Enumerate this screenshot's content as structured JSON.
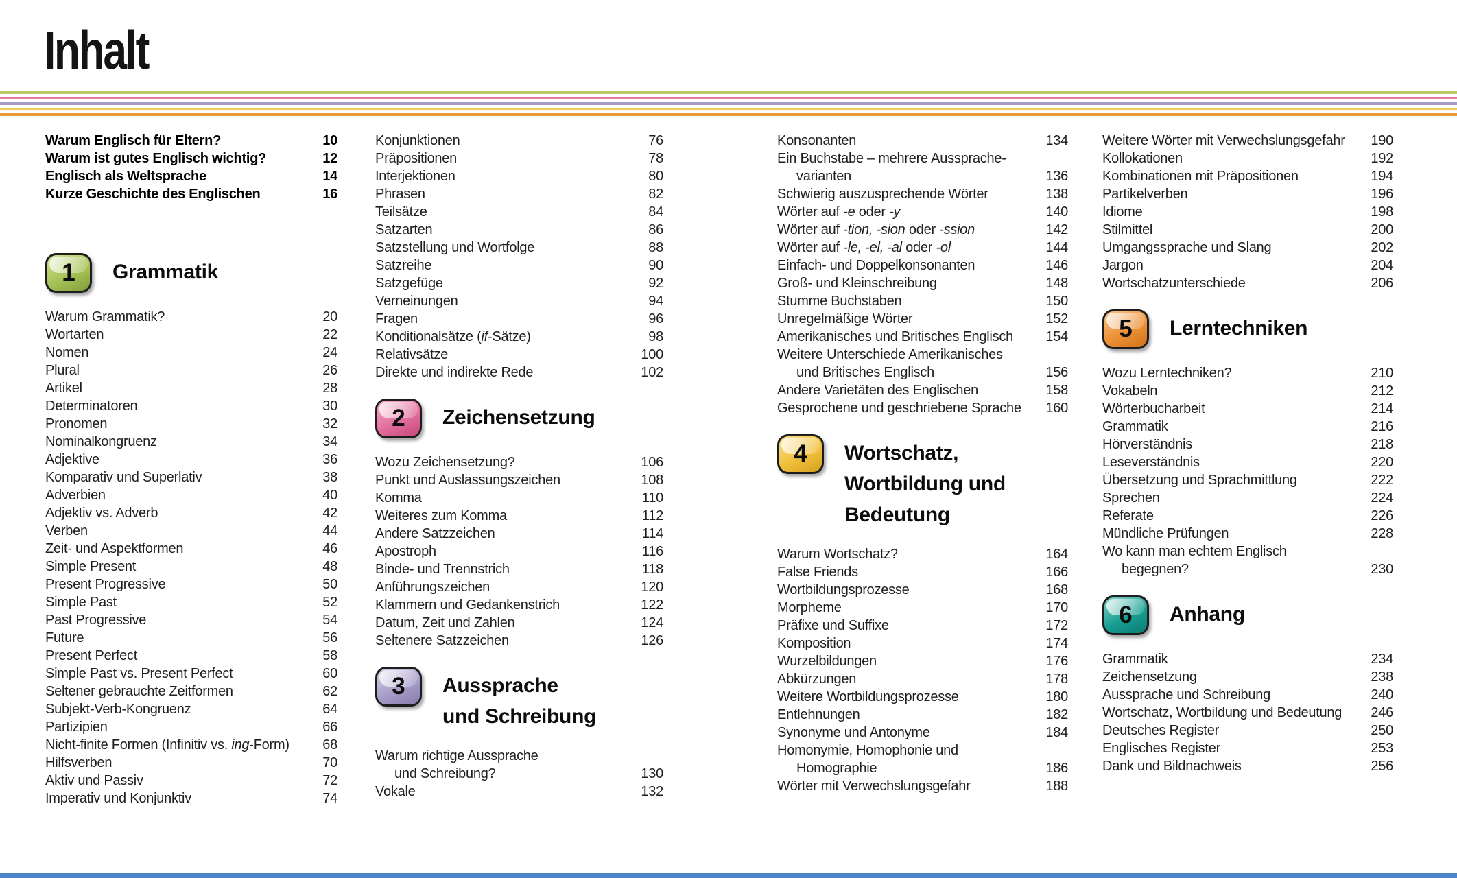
{
  "page_title": "Inhalt",
  "decor": {
    "stripe_colors": [
      "#bcca6b",
      "#e27b9e",
      "#a59bc6",
      "#f1ca57",
      "#e9993f"
    ],
    "bottom_bar_color": "#4a86c5"
  },
  "columns": [
    {
      "blocks": [
        {
          "type": "entries",
          "bold": true,
          "items": [
            {
              "lines": [
                "Warum Englisch für Eltern?"
              ],
              "page": "10"
            },
            {
              "lines": [
                "Warum ist gutes Englisch wichtig?"
              ],
              "page": "12"
            },
            {
              "lines": [
                "Englisch als Weltsprache"
              ],
              "page": "14"
            },
            {
              "lines": [
                "Kurze Geschichte des Englischen"
              ],
              "page": "16"
            }
          ]
        },
        {
          "type": "section",
          "number": "1",
          "title_lines": [
            "Grammatik"
          ],
          "colors": {
            "light": "#d3e298",
            "base": "#a6c257",
            "dark": "#81a03a"
          }
        },
        {
          "type": "entries",
          "items": [
            {
              "lines": [
                "Warum Grammatik?"
              ],
              "page": "20"
            },
            {
              "lines": [
                "Wortarten"
              ],
              "page": "22"
            },
            {
              "lines": [
                "Nomen"
              ],
              "page": "24"
            },
            {
              "lines": [
                "Plural"
              ],
              "page": "26"
            },
            {
              "lines": [
                "Artikel"
              ],
              "page": "28"
            },
            {
              "lines": [
                "Determinatoren"
              ],
              "page": "30"
            },
            {
              "lines": [
                "Pronomen"
              ],
              "page": "32"
            },
            {
              "lines": [
                "Nominalkongruenz"
              ],
              "page": "34"
            },
            {
              "lines": [
                "Adjektive"
              ],
              "page": "36"
            },
            {
              "lines": [
                "Komparativ und Superlativ"
              ],
              "page": "38"
            },
            {
              "lines": [
                "Adverbien"
              ],
              "page": "40"
            },
            {
              "lines": [
                "Adjektiv vs. Adverb"
              ],
              "page": "42"
            },
            {
              "lines": [
                "Verben"
              ],
              "page": "44"
            },
            {
              "lines": [
                "Zeit- und Aspektformen"
              ],
              "page": "46"
            },
            {
              "lines": [
                "Simple Present"
              ],
              "page": "48"
            },
            {
              "lines": [
                "Present Progressive"
              ],
              "page": "50"
            },
            {
              "lines": [
                "Simple Past"
              ],
              "page": "52"
            },
            {
              "lines": [
                "Past Progressive"
              ],
              "page": "54"
            },
            {
              "lines": [
                "Future"
              ],
              "page": "56"
            },
            {
              "lines": [
                "Present Perfect"
              ],
              "page": "58"
            },
            {
              "lines": [
                "Simple Past vs. Present Perfect"
              ],
              "page": "60"
            },
            {
              "lines": [
                "Seltener gebrauchte Zeitformen"
              ],
              "page": "62"
            },
            {
              "lines": [
                "Subjekt-Verb-Kongruenz"
              ],
              "page": "64"
            },
            {
              "lines": [
                "Partizipien"
              ],
              "page": "66"
            },
            {
              "lines": [
                "Nicht-finite Formen (Infinitiv vs. <i>ing</i>-Form)"
              ],
              "page": "68"
            },
            {
              "lines": [
                "Hilfsverben"
              ],
              "page": "70"
            },
            {
              "lines": [
                "Aktiv und Passiv"
              ],
              "page": "72"
            },
            {
              "lines": [
                "Imperativ und Konjunktiv"
              ],
              "page": "74"
            }
          ]
        }
      ]
    },
    {
      "blocks": [
        {
          "type": "entries",
          "items": [
            {
              "lines": [
                "Konjunktionen"
              ],
              "page": "76"
            },
            {
              "lines": [
                "Präpositionen"
              ],
              "page": "78"
            },
            {
              "lines": [
                "Interjektionen"
              ],
              "page": "80"
            },
            {
              "lines": [
                "Phrasen"
              ],
              "page": "82"
            },
            {
              "lines": [
                "Teilsätze"
              ],
              "page": "84"
            },
            {
              "lines": [
                "Satzarten"
              ],
              "page": "86"
            },
            {
              "lines": [
                "Satzstellung und Wortfolge"
              ],
              "page": "88"
            },
            {
              "lines": [
                "Satzreihe"
              ],
              "page": "90"
            },
            {
              "lines": [
                "Satzgefüge"
              ],
              "page": "92"
            },
            {
              "lines": [
                "Verneinungen"
              ],
              "page": "94"
            },
            {
              "lines": [
                "Fragen"
              ],
              "page": "96"
            },
            {
              "lines": [
                "Konditionalsätze (<i>if</i>-Sätze)"
              ],
              "page": "98"
            },
            {
              "lines": [
                "Relativsätze"
              ],
              "page": "100"
            },
            {
              "lines": [
                "Direkte und indirekte Rede"
              ],
              "page": "102"
            }
          ]
        },
        {
          "type": "section",
          "number": "2",
          "title_lines": [
            "Zeichensetzung"
          ],
          "colors": {
            "light": "#f5aec8",
            "base": "#e26f9d",
            "dark": "#c4487a"
          }
        },
        {
          "type": "entries",
          "items": [
            {
              "lines": [
                "Wozu Zeichensetzung?"
              ],
              "page": "106"
            },
            {
              "lines": [
                "Punkt und Auslassungszeichen"
              ],
              "page": "108"
            },
            {
              "lines": [
                "Komma"
              ],
              "page": "110"
            },
            {
              "lines": [
                "Weiteres zum Komma"
              ],
              "page": "112"
            },
            {
              "lines": [
                "Andere Satzzeichen"
              ],
              "page": "114"
            },
            {
              "lines": [
                "Apostroph"
              ],
              "page": "116"
            },
            {
              "lines": [
                "Binde- und Trennstrich"
              ],
              "page": "118"
            },
            {
              "lines": [
                "Anführungszeichen"
              ],
              "page": "120"
            },
            {
              "lines": [
                "Klammern und Gedankenstrich"
              ],
              "page": "122"
            },
            {
              "lines": [
                "Datum, Zeit und Zahlen"
              ],
              "page": "124"
            },
            {
              "lines": [
                "Seltenere Satzzeichen"
              ],
              "page": "126"
            }
          ]
        },
        {
          "type": "section",
          "number": "3",
          "title_lines": [
            "Aussprache",
            "und Schreibung"
          ],
          "colors": {
            "light": "#d4cde5",
            "base": "#a79dc8",
            "dark": "#867cab"
          }
        },
        {
          "type": "entries",
          "items": [
            {
              "lines": [
                "Warum richtige Aussprache",
                "und Schreibung?"
              ],
              "page": "130"
            },
            {
              "lines": [
                "Vokale"
              ],
              "page": "132"
            }
          ]
        }
      ]
    },
    {
      "blocks": [
        {
          "type": "entries",
          "items": [
            {
              "lines": [
                "Konsonanten"
              ],
              "page": "134"
            },
            {
              "lines": [
                "Ein Buchstabe – mehrere Aussprache-",
                "varianten"
              ],
              "page": "136"
            },
            {
              "lines": [
                "Schwierig auszusprechende Wörter"
              ],
              "page": "138"
            },
            {
              "lines": [
                "Wörter auf <i>-e</i> oder <i>-y</i>"
              ],
              "page": "140"
            },
            {
              "lines": [
                "Wörter auf <i>-tion, -sion</i> oder <i>-ssion</i>"
              ],
              "page": "142"
            },
            {
              "lines": [
                "Wörter auf <i>-le, -el, -al</i> oder <i>-ol</i>"
              ],
              "page": "144"
            },
            {
              "lines": [
                "Einfach- und Doppelkonsonanten"
              ],
              "page": "146"
            },
            {
              "lines": [
                "Groß- und Kleinschreibung"
              ],
              "page": "148"
            },
            {
              "lines": [
                "Stumme Buchstaben"
              ],
              "page": "150"
            },
            {
              "lines": [
                "Unregelmäßige Wörter"
              ],
              "page": "152"
            },
            {
              "lines": [
                "Amerikanisches und Britisches Englisch"
              ],
              "page": "154"
            },
            {
              "lines": [
                "Weitere Unterschiede Amerikanisches",
                "und Britisches Englisch"
              ],
              "page": "156"
            },
            {
              "lines": [
                "Andere Varietäten des Englischen"
              ],
              "page": "158"
            },
            {
              "lines": [
                "Gesprochene und geschriebene Sprache"
              ],
              "page": "160"
            }
          ]
        },
        {
          "type": "section",
          "number": "4",
          "title_lines": [
            "Wortschatz,",
            "Wortbildung und",
            "Bedeutung"
          ],
          "colors": {
            "light": "#f9e08e",
            "base": "#f1c13d",
            "dark": "#d69f1f"
          }
        },
        {
          "type": "entries",
          "items": [
            {
              "lines": [
                "Warum Wortschatz?"
              ],
              "page": "164"
            },
            {
              "lines": [
                "False Friends"
              ],
              "page": "166"
            },
            {
              "lines": [
                "Wortbildungsprozesse"
              ],
              "page": "168"
            },
            {
              "lines": [
                "Morpheme"
              ],
              "page": "170"
            },
            {
              "lines": [
                "Präfixe und Suffixe"
              ],
              "page": "172"
            },
            {
              "lines": [
                "Komposition"
              ],
              "page": "174"
            },
            {
              "lines": [
                "Wurzelbildungen"
              ],
              "page": "176"
            },
            {
              "lines": [
                "Abkürzungen"
              ],
              "page": "178"
            },
            {
              "lines": [
                "Weitere Wortbildungsprozesse"
              ],
              "page": "180"
            },
            {
              "lines": [
                "Entlehnungen"
              ],
              "page": "182"
            },
            {
              "lines": [
                "Synonyme und Antonyme"
              ],
              "page": "184"
            },
            {
              "lines": [
                "Homonymie, Homophonie und",
                "Homographie"
              ],
              "page": "186"
            },
            {
              "lines": [
                "Wörter mit Verwechslungsgefahr"
              ],
              "page": "188"
            }
          ]
        }
      ]
    },
    {
      "blocks": [
        {
          "type": "entries",
          "items": [
            {
              "lines": [
                "Weitere Wörter mit Verwechslungsgefahr"
              ],
              "page": "190"
            },
            {
              "lines": [
                "Kollokationen"
              ],
              "page": "192"
            },
            {
              "lines": [
                "Kombinationen mit Präpositionen"
              ],
              "page": "194"
            },
            {
              "lines": [
                "Partikelverben"
              ],
              "page": "196"
            },
            {
              "lines": [
                "Idiome"
              ],
              "page": "198"
            },
            {
              "lines": [
                "Stilmittel"
              ],
              "page": "200"
            },
            {
              "lines": [
                "Umgangssprache und Slang"
              ],
              "page": "202"
            },
            {
              "lines": [
                "Jargon"
              ],
              "page": "204"
            },
            {
              "lines": [
                "Wortschatzunterschiede"
              ],
              "page": "206"
            }
          ]
        },
        {
          "type": "section",
          "number": "5",
          "title_lines": [
            "Lerntechniken"
          ],
          "colors": {
            "light": "#f7c088",
            "base": "#ed9136",
            "dark": "#cf721c"
          }
        },
        {
          "type": "entries",
          "items": [
            {
              "lines": [
                "Wozu Lerntechniken?"
              ],
              "page": "210"
            },
            {
              "lines": [
                "Vokabeln"
              ],
              "page": "212"
            },
            {
              "lines": [
                "Wörterbucharbeit"
              ],
              "page": "214"
            },
            {
              "lines": [
                "Grammatik"
              ],
              "page": "216"
            },
            {
              "lines": [
                "Hörverständnis"
              ],
              "page": "218"
            },
            {
              "lines": [
                "Leseverständnis"
              ],
              "page": "220"
            },
            {
              "lines": [
                "Übersetzung und Sprachmittlung"
              ],
              "page": "222"
            },
            {
              "lines": [
                "Sprechen"
              ],
              "page": "224"
            },
            {
              "lines": [
                "Referate"
              ],
              "page": "226"
            },
            {
              "lines": [
                "Mündliche Prüfungen"
              ],
              "page": "228"
            },
            {
              "lines": [
                "Wo kann man echtem Englisch",
                "begegnen?"
              ],
              "page": "230"
            }
          ]
        },
        {
          "type": "section",
          "number": "6",
          "title_lines": [
            "Anhang"
          ],
          "colors": {
            "light": "#86d2c9",
            "base": "#189e93",
            "dark": "#0a7b72"
          }
        },
        {
          "type": "entries",
          "items": [
            {
              "lines": [
                "Grammatik"
              ],
              "page": "234"
            },
            {
              "lines": [
                "Zeichensetzung"
              ],
              "page": "238"
            },
            {
              "lines": [
                "Aussprache und Schreibung"
              ],
              "page": "240"
            },
            {
              "lines": [
                "Wortschatz, Wortbildung und Bedeutung"
              ],
              "page": "246"
            },
            {
              "lines": [
                "Deutsches Register"
              ],
              "page": "250"
            },
            {
              "lines": [
                "Englisches Register"
              ],
              "page": "253"
            },
            {
              "lines": [
                "Dank und Bildnachweis"
              ],
              "page": "256"
            }
          ]
        }
      ]
    }
  ]
}
